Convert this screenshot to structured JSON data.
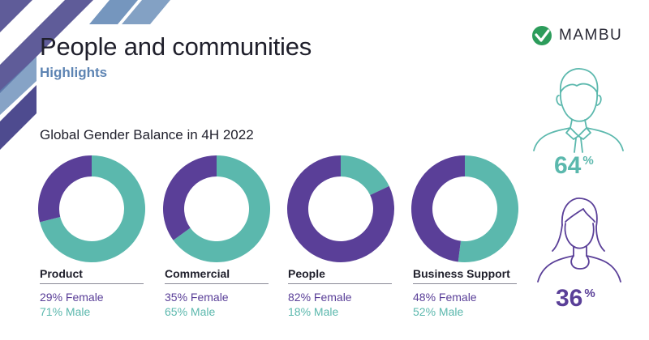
{
  "header": {
    "title": "People and communities",
    "subtitle": "Highlights"
  },
  "logo": {
    "name": "MAMBU"
  },
  "colors": {
    "female": "#5a3f98",
    "male": "#5bb8ad",
    "stripe": "#4e4b8f"
  },
  "icons": [
    "mambu-logo-icon",
    "male-figure-icon",
    "female-figure-icon"
  ],
  "overall": {
    "male": "64",
    "female": "36",
    "unit": "%"
  },
  "chart_data": {
    "type": "pie",
    "title": "Global Gender Balance in 4H 2022",
    "variant": "donut",
    "series_names": [
      "Female",
      "Male"
    ],
    "categories": [
      "Product",
      "Commercial",
      "People",
      "Business Support"
    ],
    "series": [
      {
        "name": "Female",
        "values": [
          29,
          35,
          82,
          48
        ]
      },
      {
        "name": "Male",
        "values": [
          71,
          65,
          18,
          52
        ]
      }
    ],
    "labels": [
      {
        "female": "29% Female",
        "male": "71% Male"
      },
      {
        "female": "35% Female",
        "male": "65% Male"
      },
      {
        "female": "82% Female",
        "male": "18% Male"
      },
      {
        "female": "48% Female",
        "male": "52% Male"
      }
    ]
  }
}
